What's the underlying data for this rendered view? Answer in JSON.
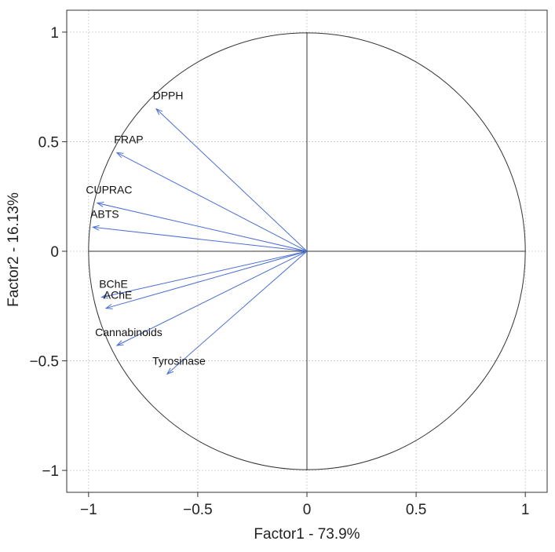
{
  "chart_data": {
    "type": "scatter",
    "subtype": "pca-correlation-circle",
    "xlabel": "Factor1 - 73.9%",
    "ylabel": "Factor2 - 16.13%",
    "xlim": [
      -1.1,
      1.1
    ],
    "ylim": [
      -1.1,
      1.1
    ],
    "xticks": [
      -1,
      -0.5,
      0,
      0.5,
      1
    ],
    "yticks": [
      -1,
      -0.5,
      0,
      0.5,
      1
    ],
    "xtick_labels": [
      "−1",
      "−0.5",
      "0",
      "0.5",
      "1"
    ],
    "ytick_labels": [
      "−1",
      "−0.5",
      "0",
      "0.5",
      "1"
    ],
    "grid": true,
    "unit_circle": true,
    "arrow_color": "#4a6fd4",
    "variables": [
      {
        "name": "DPPH",
        "x": -0.69,
        "y": 0.65
      },
      {
        "name": "FRAP",
        "x": -0.87,
        "y": 0.45
      },
      {
        "name": "CUPRAC",
        "x": -0.96,
        "y": 0.22
      },
      {
        "name": "ABTS",
        "x": -0.98,
        "y": 0.11
      },
      {
        "name": "BChE",
        "x": -0.94,
        "y": -0.21
      },
      {
        "name": "AChE",
        "x": -0.92,
        "y": -0.26
      },
      {
        "name": "Cannabinoids",
        "x": -0.87,
        "y": -0.43
      },
      {
        "name": "Tyrosinase",
        "x": -0.64,
        "y": -0.56
      }
    ]
  }
}
